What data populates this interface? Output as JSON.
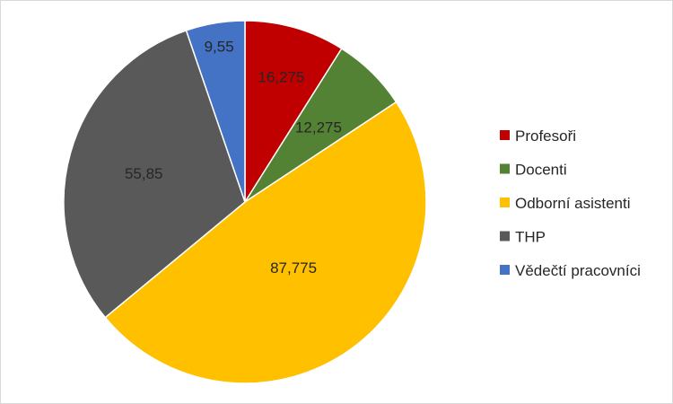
{
  "chart_data": {
    "type": "pie",
    "title": "",
    "categories": [
      "Profesoři",
      "Docenti",
      "Odborní asistenti",
      "THP",
      "Vědečtí pracovníci"
    ],
    "values": [
      16.275,
      12.275,
      87.775,
      55.85,
      9.55
    ],
    "value_labels": [
      "16,275",
      "12,275",
      "87,775",
      "55,85",
      "9,55"
    ],
    "show_data_labels": [
      true,
      true,
      true,
      true,
      true
    ],
    "colors": [
      "#c00000",
      "#548235",
      "#ffc000",
      "#595959",
      "#4472c4"
    ],
    "start_angle": "12 o'clock",
    "direction": "clockwise",
    "legend": {
      "position": "right",
      "entries": [
        "Profesoři",
        "Docenti",
        "Odborní asistenti",
        "THP",
        "Vědečtí pracovníci"
      ]
    }
  }
}
